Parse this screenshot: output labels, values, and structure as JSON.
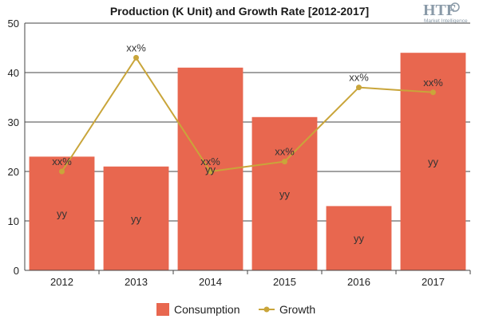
{
  "logo": {
    "mark": "HTF",
    "tagline": "Market Intelligence"
  },
  "chart_data": {
    "type": "bar",
    "title": "Production (K Unit) and Growth Rate [2012-2017]",
    "categories": [
      "2012",
      "2013",
      "2014",
      "2015",
      "2016",
      "2017"
    ],
    "ylim": [
      0,
      50
    ],
    "yticks": [
      "0",
      "10",
      "20",
      "30",
      "40",
      "50"
    ],
    "grid": true,
    "legend_position": "bottom",
    "series": [
      {
        "name": "Consumption",
        "type": "bar",
        "color": "#e8674f",
        "values": [
          23,
          21,
          41,
          31,
          13,
          44
        ],
        "labels": [
          "yy",
          "yy",
          "yy",
          "yy",
          "yy",
          "yy"
        ]
      },
      {
        "name": "Growth",
        "type": "line",
        "color": "#c9a53a",
        "values": [
          20,
          43,
          20,
          22,
          37,
          36
        ],
        "labels": [
          "xx%",
          "xx%",
          "xx%",
          "xx%",
          "xx%",
          "xx%"
        ]
      }
    ]
  }
}
